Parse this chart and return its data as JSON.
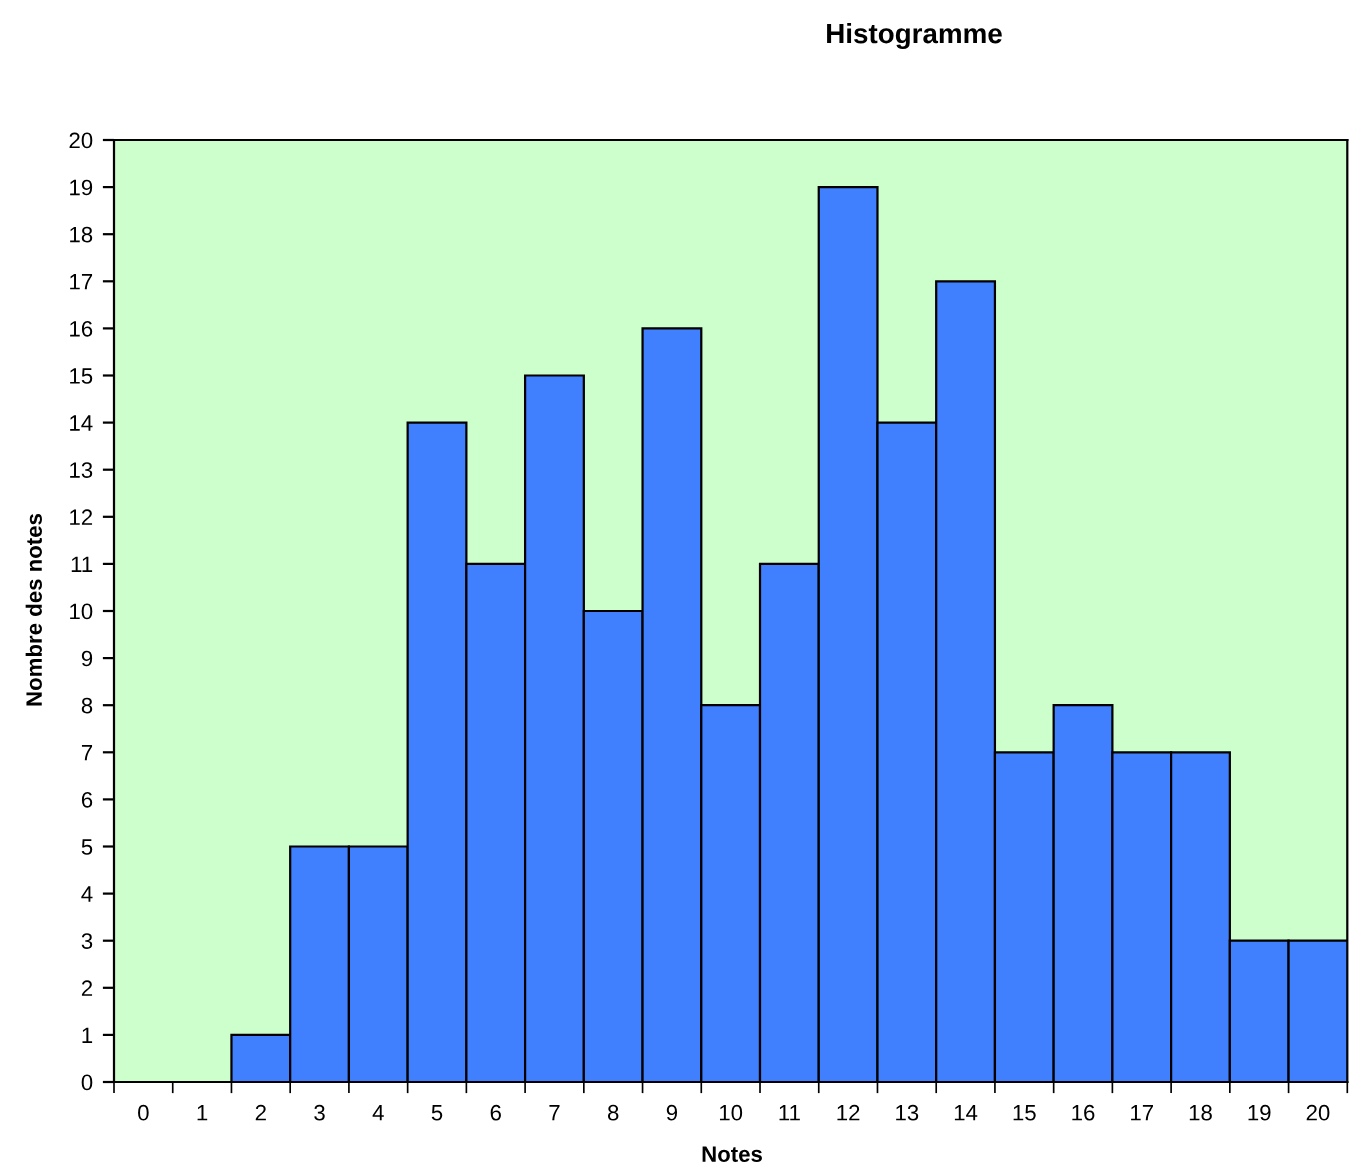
{
  "chart_data": {
    "type": "bar",
    "title": "Histogramme",
    "xlabel": "Notes",
    "ylabel": "Nombre des notes",
    "categories": [
      "0",
      "1",
      "2",
      "3",
      "4",
      "5",
      "6",
      "7",
      "8",
      "9",
      "10",
      "11",
      "12",
      "13",
      "14",
      "15",
      "16",
      "17",
      "18",
      "19",
      "20"
    ],
    "values": [
      0,
      0,
      1,
      5,
      5,
      14,
      11,
      15,
      10,
      16,
      8,
      11,
      19,
      14,
      17,
      7,
      8,
      7,
      7,
      3,
      3
    ],
    "color": "#4080ff",
    "ylim": [
      0,
      20
    ],
    "yticks": [
      0,
      1,
      2,
      3,
      4,
      5,
      6,
      7,
      8,
      9,
      10,
      11,
      12,
      13,
      14,
      15,
      16,
      17,
      18,
      19,
      20
    ],
    "grid": false
  }
}
